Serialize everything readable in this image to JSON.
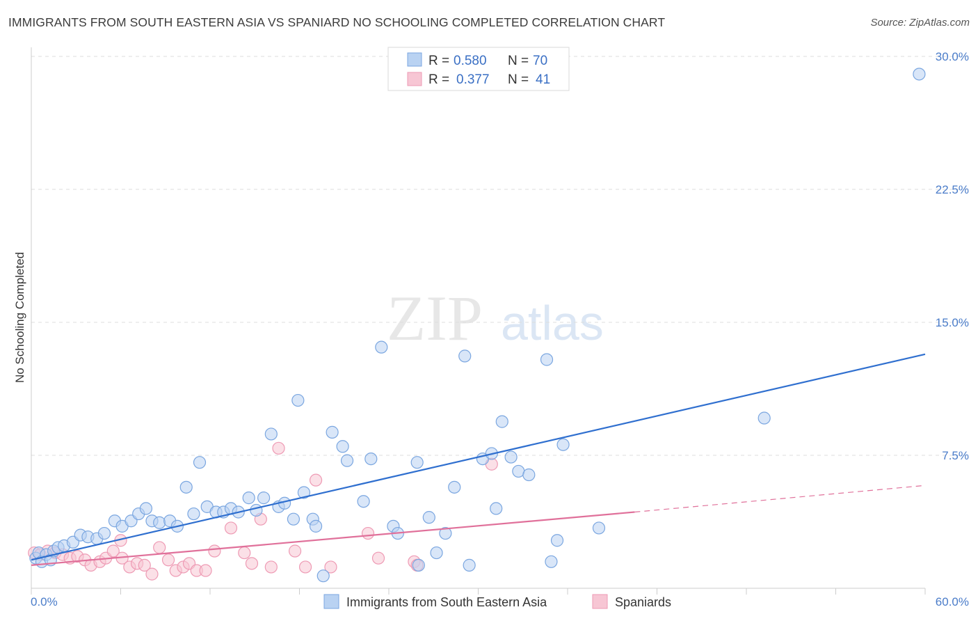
{
  "header": {
    "title": "IMMIGRANTS FROM SOUTH EASTERN ASIA VS SPANIARD NO SCHOOLING COMPLETED CORRELATION CHART",
    "source": "Source: ZipAtlas.com"
  },
  "watermark": {
    "part1": "ZIP",
    "part2": "atlas"
  },
  "colors": {
    "blue_fill": "#b9d2f2",
    "blue_stroke": "#7aa6e0",
    "blue_line": "#2f6fcf",
    "pink_fill": "#f7c6d4",
    "pink_stroke": "#ee9ab4",
    "pink_line": "#e0709a",
    "grid": "#dddddd",
    "tick_text": "#4a7cc9"
  },
  "legend": {
    "rows": [
      {
        "r_label": "R =",
        "r_value": "0.580",
        "n_label": "N =",
        "n_value": "70"
      },
      {
        "r_label": "R =",
        "r_value": "0.377",
        "n_label": "N =",
        "n_value": "41"
      }
    ]
  },
  "chart_data": {
    "type": "scatter",
    "title": "IMMIGRANTS FROM SOUTH EASTERN ASIA VS SPANIARD NO SCHOOLING COMPLETED CORRELATION CHART",
    "xlabel": "",
    "ylabel": "No Schooling Completed",
    "xlim": [
      0,
      60
    ],
    "ylim": [
      0,
      30
    ],
    "x_tick_labels": [
      "0.0%",
      "60.0%"
    ],
    "y_ticks": [
      7.5,
      15.0,
      22.5,
      30.0
    ],
    "y_tick_labels": [
      "7.5%",
      "15.0%",
      "22.5%",
      "30.0%"
    ],
    "grid": true,
    "legend_position": "top-center",
    "series": [
      {
        "name": "Immigrants from South Eastern Asia",
        "r": 0.58,
        "n": 70,
        "trend": {
          "x0": 0,
          "y0": 1.6,
          "x1": 60,
          "y1": 13.2
        },
        "points": [
          [
            0.3,
            1.7
          ],
          [
            0.5,
            2.0
          ],
          [
            0.7,
            1.5
          ],
          [
            1.0,
            1.9
          ],
          [
            1.3,
            1.6
          ],
          [
            1.5,
            2.1
          ],
          [
            1.8,
            2.3
          ],
          [
            2.2,
            2.4
          ],
          [
            2.8,
            2.6
          ],
          [
            3.3,
            3.0
          ],
          [
            3.8,
            2.9
          ],
          [
            4.4,
            2.8
          ],
          [
            4.9,
            3.1
          ],
          [
            5.6,
            3.8
          ],
          [
            6.1,
            3.5
          ],
          [
            6.7,
            3.8
          ],
          [
            7.2,
            4.2
          ],
          [
            7.7,
            4.5
          ],
          [
            8.1,
            3.8
          ],
          [
            8.6,
            3.7
          ],
          [
            9.3,
            3.8
          ],
          [
            9.8,
            3.5
          ],
          [
            10.4,
            5.7
          ],
          [
            10.9,
            4.2
          ],
          [
            11.3,
            7.1
          ],
          [
            11.8,
            4.6
          ],
          [
            12.4,
            4.3
          ],
          [
            12.9,
            4.3
          ],
          [
            13.4,
            4.5
          ],
          [
            13.9,
            4.3
          ],
          [
            14.6,
            5.1
          ],
          [
            15.1,
            4.4
          ],
          [
            15.6,
            5.1
          ],
          [
            16.1,
            8.7
          ],
          [
            16.6,
            4.6
          ],
          [
            17.0,
            4.8
          ],
          [
            17.6,
            3.9
          ],
          [
            17.9,
            10.6
          ],
          [
            18.3,
            5.4
          ],
          [
            18.9,
            3.9
          ],
          [
            19.1,
            3.5
          ],
          [
            19.6,
            0.7
          ],
          [
            20.2,
            8.8
          ],
          [
            20.9,
            8.0
          ],
          [
            21.2,
            7.2
          ],
          [
            22.3,
            4.9
          ],
          [
            22.8,
            7.3
          ],
          [
            23.5,
            13.6
          ],
          [
            24.3,
            3.5
          ],
          [
            24.6,
            3.1
          ],
          [
            25.9,
            7.1
          ],
          [
            26.0,
            1.3
          ],
          [
            26.7,
            4.0
          ],
          [
            27.2,
            2.0
          ],
          [
            27.8,
            3.1
          ],
          [
            28.4,
            5.7
          ],
          [
            29.1,
            13.1
          ],
          [
            29.4,
            1.3
          ],
          [
            30.3,
            7.3
          ],
          [
            30.9,
            7.6
          ],
          [
            31.2,
            4.5
          ],
          [
            31.6,
            9.4
          ],
          [
            32.2,
            7.4
          ],
          [
            32.7,
            6.6
          ],
          [
            33.4,
            6.4
          ],
          [
            34.6,
            12.9
          ],
          [
            34.9,
            1.5
          ],
          [
            35.3,
            2.7
          ],
          [
            35.7,
            8.1
          ],
          [
            38.1,
            3.4
          ],
          [
            49.2,
            9.6
          ],
          [
            59.6,
            29.0
          ]
        ]
      },
      {
        "name": "Spaniards",
        "r": 0.377,
        "n": 41,
        "trend_solid": {
          "x0": 0,
          "y0": 1.3,
          "x1": 40.5,
          "y1": 4.3
        },
        "trend_dashed": {
          "x0": 40.5,
          "y0": 4.3,
          "x1": 60,
          "y1": 5.8
        },
        "points": [
          [
            0.2,
            2.0
          ],
          [
            0.6,
            1.9
          ],
          [
            1.1,
            2.1
          ],
          [
            1.6,
            2.0
          ],
          [
            2.1,
            1.9
          ],
          [
            2.6,
            1.7
          ],
          [
            3.1,
            1.8
          ],
          [
            3.6,
            1.6
          ],
          [
            4.0,
            1.3
          ],
          [
            4.6,
            1.5
          ],
          [
            5.0,
            1.7
          ],
          [
            5.5,
            2.1
          ],
          [
            6.0,
            2.7
          ],
          [
            6.1,
            1.7
          ],
          [
            6.6,
            1.2
          ],
          [
            7.1,
            1.4
          ],
          [
            7.6,
            1.3
          ],
          [
            8.1,
            0.8
          ],
          [
            8.6,
            2.3
          ],
          [
            9.2,
            1.6
          ],
          [
            9.7,
            1.0
          ],
          [
            10.2,
            1.2
          ],
          [
            10.6,
            1.4
          ],
          [
            11.1,
            1.0
          ],
          [
            11.7,
            1.0
          ],
          [
            12.3,
            2.1
          ],
          [
            13.4,
            3.4
          ],
          [
            14.3,
            2.0
          ],
          [
            14.8,
            1.4
          ],
          [
            15.4,
            3.9
          ],
          [
            16.1,
            1.2
          ],
          [
            16.6,
            7.9
          ],
          [
            17.7,
            2.1
          ],
          [
            18.4,
            1.2
          ],
          [
            19.1,
            6.1
          ],
          [
            20.1,
            1.2
          ],
          [
            22.6,
            3.1
          ],
          [
            23.3,
            1.7
          ],
          [
            25.7,
            1.5
          ],
          [
            25.9,
            1.3
          ],
          [
            30.9,
            7.0
          ]
        ]
      }
    ]
  },
  "bottom_legend": {
    "items": [
      {
        "label": "Immigrants from South Eastern Asia"
      },
      {
        "label": "Spaniards"
      }
    ]
  }
}
